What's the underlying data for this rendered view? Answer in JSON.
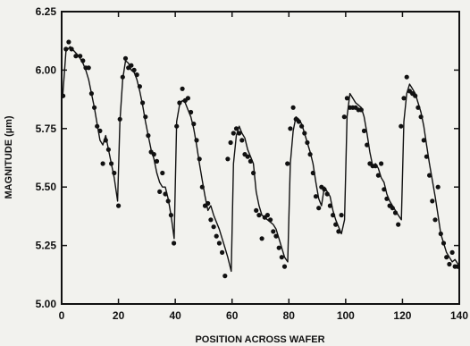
{
  "chart_data": {
    "type": "line",
    "title": "",
    "xlabel": "POSITION ACROSS WAFER",
    "ylabel": "MAGNITUDE (µm)",
    "xlim": [
      0,
      140
    ],
    "ylim": [
      5.0,
      6.25
    ],
    "x_ticks": [
      0,
      20,
      40,
      60,
      80,
      100,
      120,
      140
    ],
    "y_ticks": [
      5.0,
      5.25,
      5.5,
      5.75,
      6.0,
      6.25
    ],
    "x_tick_labels": [
      "0",
      "20",
      "40",
      "60",
      "80",
      "100",
      "120",
      "140"
    ],
    "y_tick_labels": [
      "5.00",
      "5.25",
      "5.50",
      "5.75",
      "6.00",
      "6.25"
    ],
    "grid": false,
    "legend": "none",
    "series": [
      {
        "style": "line",
        "x": [
          0.3,
          1.5,
          3.0,
          4.5,
          6.0,
          7.5,
          8.5,
          9.5,
          10.5,
          11.5,
          12.5,
          13.5,
          14.5,
          15.5,
          16.5,
          17.5,
          18.5,
          19.7,
          20.5,
          21.5,
          22.5,
          23.5,
          24.5,
          25.5,
          26.5,
          27.5,
          28.5,
          29.5,
          30.5,
          31.5,
          32.5,
          33.5,
          34.5,
          35.5,
          36.5,
          37.5,
          38.5,
          39.6,
          40.5,
          41.5,
          42.5,
          43.5,
          44.5,
          45.5,
          46.5,
          47.5,
          48.5,
          49.5,
          50.5,
          51.5,
          52.5,
          53.5,
          54.5,
          55.5,
          56.5,
          57.5,
          58.5,
          59.7,
          60.5,
          61.5,
          62.5,
          63.5,
          64.5,
          65.5,
          66.5,
          67.5,
          68.5,
          69.5,
          70.5,
          71.5,
          72.5,
          73.5,
          74.5,
          75.5,
          76.5,
          77.5,
          78.5,
          79.6,
          80.5,
          81.5,
          82.5,
          83.5,
          84.5,
          85.5,
          86.5,
          87.5,
          88.5,
          89.5,
          90.5,
          91.5,
          92.5,
          93.5,
          94.5,
          95.5,
          96.5,
          97.5,
          98.5,
          99.6,
          100.5,
          101.5,
          102.5,
          103.5,
          104.5,
          105.5,
          106.5,
          107.5,
          108.5,
          109.5,
          110.5,
          111.5,
          112.5,
          113.5,
          114.5,
          115.5,
          116.5,
          117.5,
          118.5,
          119.6,
          120.5,
          121.5,
          122.5,
          123.5,
          124.5,
          125.5,
          126.5,
          127.5,
          128.5,
          129.5,
          130.5,
          131.5,
          132.5,
          133.5,
          134.5,
          135.5,
          136.5,
          137.5,
          138.5,
          139.6
        ],
        "y": [
          5.88,
          6.08,
          6.1,
          6.08,
          6.06,
          6.03,
          6.0,
          5.96,
          5.9,
          5.84,
          5.77,
          5.7,
          5.68,
          5.72,
          5.66,
          5.6,
          5.54,
          5.44,
          5.78,
          5.96,
          6.04,
          6.03,
          6.0,
          5.99,
          5.96,
          5.91,
          5.85,
          5.78,
          5.72,
          5.66,
          5.62,
          5.56,
          5.52,
          5.5,
          5.5,
          5.45,
          5.38,
          5.28,
          5.78,
          5.85,
          5.87,
          5.86,
          5.83,
          5.8,
          5.75,
          5.68,
          5.6,
          5.53,
          5.46,
          5.4,
          5.42,
          5.38,
          5.35,
          5.32,
          5.28,
          5.24,
          5.2,
          5.14,
          5.6,
          5.72,
          5.76,
          5.73,
          5.71,
          5.66,
          5.63,
          5.6,
          5.48,
          5.42,
          5.38,
          5.37,
          5.36,
          5.35,
          5.34,
          5.32,
          5.28,
          5.24,
          5.2,
          5.18,
          5.6,
          5.74,
          5.8,
          5.79,
          5.77,
          5.73,
          5.69,
          5.65,
          5.6,
          5.52,
          5.45,
          5.42,
          5.5,
          5.48,
          5.46,
          5.4,
          5.36,
          5.33,
          5.3,
          5.36,
          5.8,
          5.9,
          5.88,
          5.86,
          5.85,
          5.84,
          5.8,
          5.73,
          5.65,
          5.59,
          5.6,
          5.58,
          5.54,
          5.52,
          5.47,
          5.44,
          5.42,
          5.4,
          5.38,
          5.36,
          5.78,
          5.9,
          5.94,
          5.92,
          5.9,
          5.86,
          5.82,
          5.76,
          5.68,
          5.6,
          5.53,
          5.46,
          5.38,
          5.3,
          5.26,
          5.22,
          5.2,
          5.18,
          5.19,
          5.17
        ]
      },
      {
        "style": "markers",
        "x": [
          0.5,
          1.5,
          2.5,
          3.5,
          5.0,
          6.5,
          7.5,
          8.5,
          9.5,
          10.5,
          11.5,
          12.5,
          13.5,
          14.5,
          15.5,
          16.5,
          17.5,
          18.5,
          20.0,
          20.5,
          21.5,
          22.5,
          23.5,
          24.5,
          25.5,
          26.5,
          27.5,
          28.5,
          29.5,
          30.5,
          31.5,
          32.5,
          33.5,
          34.5,
          35.5,
          36.5,
          37.5,
          38.5,
          39.5,
          40.5,
          41.5,
          42.5,
          43.5,
          44.5,
          45.5,
          46.5,
          47.5,
          48.5,
          49.5,
          50.5,
          51.5,
          52.5,
          53.5,
          54.5,
          55.5,
          56.5,
          57.5,
          58.5,
          59.5,
          60.5,
          61.5,
          62.5,
          63.5,
          64.5,
          65.5,
          66.5,
          67.5,
          68.5,
          69.5,
          70.5,
          71.5,
          72.5,
          73.5,
          74.5,
          75.5,
          76.5,
          77.5,
          78.5,
          79.5,
          80.5,
          81.5,
          82.5,
          83.5,
          84.5,
          85.5,
          86.5,
          87.5,
          88.5,
          89.5,
          90.5,
          91.5,
          92.5,
          93.5,
          94.5,
          95.5,
          96.5,
          97.5,
          98.5,
          99.5,
          100.5,
          101.5,
          102.5,
          103.5,
          104.5,
          105.5,
          106.5,
          107.5,
          108.5,
          109.5,
          110.5,
          111.5,
          112.5,
          113.5,
          114.5,
          115.5,
          116.5,
          117.5,
          118.5,
          119.5,
          120.5,
          121.5,
          122.5,
          123.5,
          124.5,
          125.5,
          126.5,
          127.5,
          128.5,
          129.5,
          130.5,
          131.5,
          132.5,
          133.5,
          134.5,
          135.5,
          136.5,
          137.5,
          138.5,
          139.5
        ],
        "y": [
          5.89,
          6.09,
          6.12,
          6.09,
          6.06,
          6.06,
          6.04,
          6.01,
          6.01,
          5.9,
          5.84,
          5.76,
          5.74,
          5.6,
          5.7,
          5.66,
          5.6,
          5.56,
          5.42,
          5.79,
          5.97,
          6.05,
          6.01,
          6.02,
          6.0,
          5.98,
          5.93,
          5.86,
          5.8,
          5.72,
          5.65,
          5.64,
          5.61,
          5.48,
          5.56,
          5.47,
          5.44,
          5.38,
          5.26,
          5.76,
          5.86,
          5.92,
          5.87,
          5.88,
          5.82,
          5.77,
          5.7,
          5.62,
          5.5,
          5.42,
          5.43,
          5.36,
          5.33,
          5.29,
          5.26,
          5.22,
          5.12,
          5.62,
          5.69,
          5.73,
          5.75,
          5.73,
          5.7,
          5.64,
          5.63,
          5.61,
          5.56,
          5.4,
          5.38,
          5.28,
          5.37,
          5.38,
          5.36,
          5.31,
          5.29,
          5.24,
          5.2,
          5.16,
          5.6,
          5.75,
          5.84,
          5.79,
          5.78,
          5.76,
          5.73,
          5.69,
          5.64,
          5.56,
          5.46,
          5.41,
          5.5,
          5.49,
          5.47,
          5.42,
          5.38,
          5.34,
          5.31,
          5.38,
          5.8,
          5.88,
          5.84,
          5.84,
          5.84,
          5.83,
          5.83,
          5.74,
          5.68,
          5.6,
          5.59,
          5.59,
          5.55,
          5.6,
          5.49,
          5.45,
          5.42,
          5.41,
          5.39,
          5.34,
          5.76,
          5.88,
          5.97,
          5.91,
          5.9,
          5.89,
          5.84,
          5.8,
          5.7,
          5.63,
          5.55,
          5.44,
          5.36,
          5.5,
          5.3,
          5.26,
          5.2,
          5.17,
          5.22,
          5.16,
          5.16
        ]
      }
    ]
  }
}
